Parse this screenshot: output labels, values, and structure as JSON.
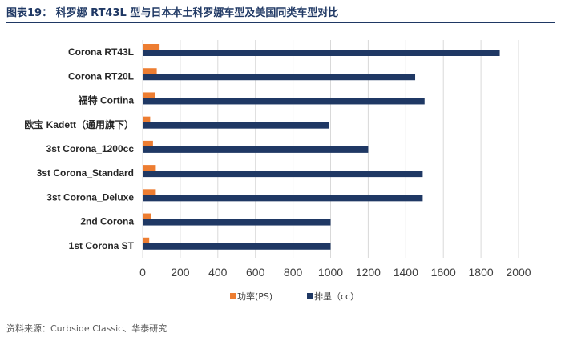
{
  "header": {
    "title": "图表19： 科罗娜 RT43L 型与日本本土科罗娜车型及美国同类车型对比"
  },
  "footer": {
    "source": "资料来源：Curbside Classic、华泰研究"
  },
  "colors": {
    "power": "#ed7d31",
    "displacement": "#1f3864",
    "grid": "#d9d9d9",
    "rule": "#1f3864"
  },
  "chart_data": {
    "type": "bar",
    "orientation": "horizontal",
    "categories": [
      "Corona RT43L",
      "Corona RT20L",
      "福特 Cortina",
      "欧宝 Kadett（通用旗下）",
      "3st Corona_1200cc",
      "3st Corona_Standard",
      "3st Corona_Deluxe",
      "2nd Corona",
      "1st Corona ST"
    ],
    "series": [
      {
        "name": "功率(PS)",
        "color": "#ed7d31",
        "values": [
          90,
          75,
          65,
          40,
          55,
          70,
          70,
          45,
          35
        ]
      },
      {
        "name": "排量（cc）",
        "color": "#1f3864",
        "values": [
          1900,
          1450,
          1500,
          990,
          1200,
          1490,
          1490,
          1000,
          1000
        ]
      }
    ],
    "x_ticks": [
      "0",
      "200",
      "400",
      "600",
      "800",
      "1000",
      "1200",
      "1400",
      "1600",
      "1800",
      "2000"
    ],
    "xlim": [
      0,
      2000
    ],
    "grid": true,
    "legend": "bottom"
  }
}
